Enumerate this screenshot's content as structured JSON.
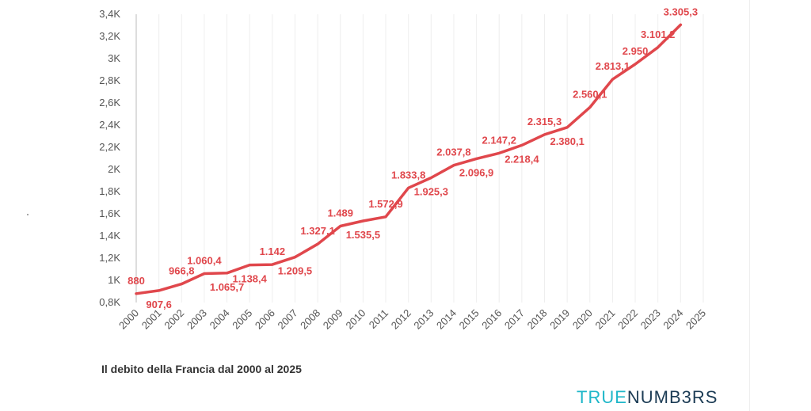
{
  "caption": "Il debito della Francia dal 2000 al 2025",
  "brand": {
    "part1": "TRUE",
    "part2": "NUMB3RS"
  },
  "colors": {
    "line": "#e0474c",
    "label": "#e0474c",
    "brand_accent": "#1fb7c9",
    "brand_dark": "#1c3c55"
  },
  "chart_data": {
    "type": "line",
    "title": "",
    "xlabel": "",
    "ylabel": "",
    "x": [
      2000,
      2001,
      2002,
      2003,
      2004,
      2005,
      2006,
      2007,
      2008,
      2009,
      2010,
      2011,
      2012,
      2013,
      2014,
      2015,
      2016,
      2017,
      2018,
      2019,
      2020,
      2021,
      2022,
      2023,
      2024
    ],
    "x_ticks": [
      "2000",
      "2001",
      "2002",
      "2003",
      "2004",
      "2005",
      "2006",
      "2007",
      "2008",
      "2009",
      "2010",
      "2011",
      "2012",
      "2013",
      "2014",
      "2015",
      "2016",
      "2017",
      "2018",
      "2019",
      "2020",
      "2021",
      "2022",
      "2023",
      "2024",
      "2025"
    ],
    "values": [
      880,
      907.6,
      966.8,
      1060.4,
      1065.7,
      1138.4,
      1142,
      1209.5,
      1327.1,
      1489,
      1535.5,
      1572.9,
      1833.8,
      1925.3,
      2037.8,
      2096.9,
      2147.2,
      2218.4,
      2315.3,
      2380.1,
      2560.1,
      2813.1,
      2950,
      3101.2,
      3305.3
    ],
    "labels": [
      "880",
      "907,6",
      "966,8",
      "1.060,4",
      "1.065,7",
      "1.138,4",
      "1.142",
      "1.209,5",
      "1.327,1",
      "1.489",
      "1.535,5",
      "1.572,9",
      "1.833,8",
      "1.925,3",
      "2.037,8",
      "2.096,9",
      "2.147,2",
      "2.218,4",
      "2.315,3",
      "2.380,1",
      "2.560,1",
      "2.813,1",
      "2.950",
      "3.101,2",
      "3.305,3"
    ],
    "label_position": [
      "above",
      "below",
      "above",
      "above",
      "below",
      "below",
      "above",
      "below",
      "above",
      "above",
      "below",
      "above",
      "above",
      "below",
      "above",
      "below",
      "above",
      "below",
      "above",
      "below",
      "above",
      "above",
      "above",
      "above",
      "above"
    ],
    "y_ticks": [
      {
        "value": 800,
        "label": "0,8K"
      },
      {
        "value": 1000,
        "label": "1K"
      },
      {
        "value": 1200,
        "label": "1,2K"
      },
      {
        "value": 1400,
        "label": "1,4K"
      },
      {
        "value": 1600,
        "label": "1,6K"
      },
      {
        "value": 1800,
        "label": "1,8K"
      },
      {
        "value": 2000,
        "label": "2K"
      },
      {
        "value": 2200,
        "label": "2,2K"
      },
      {
        "value": 2400,
        "label": "2,4K"
      },
      {
        "value": 2600,
        "label": "2,6K"
      },
      {
        "value": 2800,
        "label": "2,8K"
      },
      {
        "value": 3000,
        "label": "3K"
      },
      {
        "value": 3200,
        "label": "3,2K"
      },
      {
        "value": 3400,
        "label": "3,4K"
      }
    ],
    "ylim": [
      800,
      3400
    ],
    "xlim": [
      2000,
      2025
    ],
    "grid": "vertical"
  }
}
